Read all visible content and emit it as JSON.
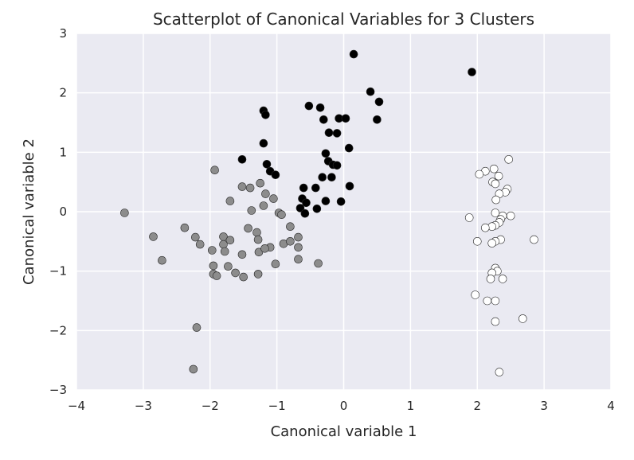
{
  "chart_data": {
    "type": "scatter",
    "title": "Scatterplot of Canonical Variables for 3 Clusters",
    "xlabel": "Canonical variable 1",
    "ylabel": "Canonical variable 2",
    "xlim": [
      -4,
      4
    ],
    "ylim": [
      -3,
      3
    ],
    "xticks": [
      -4,
      -3,
      -2,
      -1,
      0,
      1,
      2,
      3,
      4
    ],
    "yticks": [
      3,
      2,
      1,
      0,
      -1,
      -2,
      -3
    ],
    "xtick_labels": [
      "−4",
      "−3",
      "−2",
      "−1",
      "0",
      "1",
      "2",
      "3",
      "4"
    ],
    "ytick_labels": [
      "3",
      "2",
      "1",
      "0",
      "−1",
      "−2",
      "−3"
    ],
    "grid": true,
    "colors": {
      "plot_background": "#eaeaf2",
      "grid": "#ffffff",
      "marker_edge": "#262626"
    },
    "series": [
      {
        "color": "#000000",
        "points": [
          [
            0.15,
            2.65
          ],
          [
            1.92,
            2.35
          ],
          [
            0.4,
            2.02
          ],
          [
            0.53,
            1.85
          ],
          [
            0.5,
            1.55
          ],
          [
            -0.52,
            1.78
          ],
          [
            -0.35,
            1.75
          ],
          [
            -1.2,
            1.7
          ],
          [
            -1.17,
            1.63
          ],
          [
            -0.3,
            1.55
          ],
          [
            -0.07,
            1.57
          ],
          [
            0.03,
            1.57
          ],
          [
            -0.22,
            1.33
          ],
          [
            -0.1,
            1.32
          ],
          [
            -1.2,
            1.15
          ],
          [
            0.08,
            1.07
          ],
          [
            -0.27,
            0.98
          ],
          [
            -1.52,
            0.88
          ],
          [
            -0.23,
            0.85
          ],
          [
            -0.16,
            0.79
          ],
          [
            -0.1,
            0.78
          ],
          [
            -1.15,
            0.8
          ],
          [
            -1.1,
            0.68
          ],
          [
            -1.02,
            0.62
          ],
          [
            -0.32,
            0.58
          ],
          [
            -0.18,
            0.58
          ],
          [
            0.09,
            0.43
          ],
          [
            -0.6,
            0.4
          ],
          [
            -0.42,
            0.4
          ],
          [
            -0.62,
            0.22
          ],
          [
            -0.56,
            0.15
          ],
          [
            -0.27,
            0.18
          ],
          [
            -0.04,
            0.17
          ],
          [
            -0.65,
            0.06
          ],
          [
            -0.4,
            0.05
          ],
          [
            -0.58,
            -0.03
          ]
        ]
      },
      {
        "color": "#8c8c8c",
        "points": [
          [
            -3.28,
            -0.02
          ],
          [
            -1.93,
            0.7
          ],
          [
            -1.25,
            0.48
          ],
          [
            -1.52,
            0.42
          ],
          [
            -1.4,
            0.4
          ],
          [
            -1.7,
            0.18
          ],
          [
            -1.17,
            0.3
          ],
          [
            -1.05,
            0.22
          ],
          [
            -1.2,
            0.1
          ],
          [
            -0.97,
            -0.02
          ],
          [
            -1.38,
            0.02
          ],
          [
            -0.93,
            -0.05
          ],
          [
            -2.38,
            -0.27
          ],
          [
            -2.85,
            -0.42
          ],
          [
            -2.22,
            -0.43
          ],
          [
            -1.8,
            -0.42
          ],
          [
            -1.43,
            -0.28
          ],
          [
            -1.3,
            -0.35
          ],
          [
            -0.8,
            -0.25
          ],
          [
            -0.68,
            -0.43
          ],
          [
            -0.9,
            -0.54
          ],
          [
            -2.15,
            -0.55
          ],
          [
            -1.8,
            -0.55
          ],
          [
            -1.28,
            -0.47
          ],
          [
            -1.7,
            -0.48
          ],
          [
            -0.8,
            -0.5
          ],
          [
            -0.68,
            -0.6
          ],
          [
            -1.1,
            -0.6
          ],
          [
            -2.72,
            -0.82
          ],
          [
            -1.97,
            -0.65
          ],
          [
            -1.78,
            -0.67
          ],
          [
            -1.52,
            -0.72
          ],
          [
            -1.27,
            -0.68
          ],
          [
            -1.18,
            -0.62
          ],
          [
            -0.68,
            -0.8
          ],
          [
            -0.38,
            -0.87
          ],
          [
            -1.02,
            -0.88
          ],
          [
            -1.95,
            -0.91
          ],
          [
            -1.73,
            -0.92
          ],
          [
            -1.95,
            -1.05
          ],
          [
            -1.62,
            -1.03
          ],
          [
            -1.5,
            -1.1
          ],
          [
            -1.28,
            -1.05
          ],
          [
            -1.9,
            -1.08
          ],
          [
            -2.2,
            -1.95
          ],
          [
            -2.25,
            -2.65
          ]
        ]
      },
      {
        "color": "#ffffff",
        "points": [
          [
            2.47,
            0.88
          ],
          [
            2.12,
            0.68
          ],
          [
            2.25,
            0.72
          ],
          [
            2.03,
            0.63
          ],
          [
            2.32,
            0.6
          ],
          [
            2.23,
            0.5
          ],
          [
            2.27,
            0.47
          ],
          [
            2.45,
            0.38
          ],
          [
            2.42,
            0.33
          ],
          [
            2.33,
            0.3
          ],
          [
            2.28,
            0.2
          ],
          [
            1.88,
            -0.1
          ],
          [
            2.27,
            -0.02
          ],
          [
            2.38,
            -0.07
          ],
          [
            2.5,
            -0.07
          ],
          [
            2.35,
            -0.13
          ],
          [
            2.33,
            -0.18
          ],
          [
            2.27,
            -0.23
          ],
          [
            2.22,
            -0.25
          ],
          [
            2.12,
            -0.27
          ],
          [
            2.35,
            -0.47
          ],
          [
            2.0,
            -0.5
          ],
          [
            2.27,
            -0.5
          ],
          [
            2.22,
            -0.53
          ],
          [
            2.85,
            -0.47
          ],
          [
            2.27,
            -0.95
          ],
          [
            2.3,
            -1.0
          ],
          [
            2.22,
            -1.03
          ],
          [
            2.2,
            -1.13
          ],
          [
            2.38,
            -1.13
          ],
          [
            1.97,
            -1.4
          ],
          [
            2.15,
            -1.5
          ],
          [
            2.27,
            -1.5
          ],
          [
            2.68,
            -1.8
          ],
          [
            2.27,
            -1.85
          ],
          [
            2.33,
            -2.7
          ]
        ]
      }
    ]
  }
}
